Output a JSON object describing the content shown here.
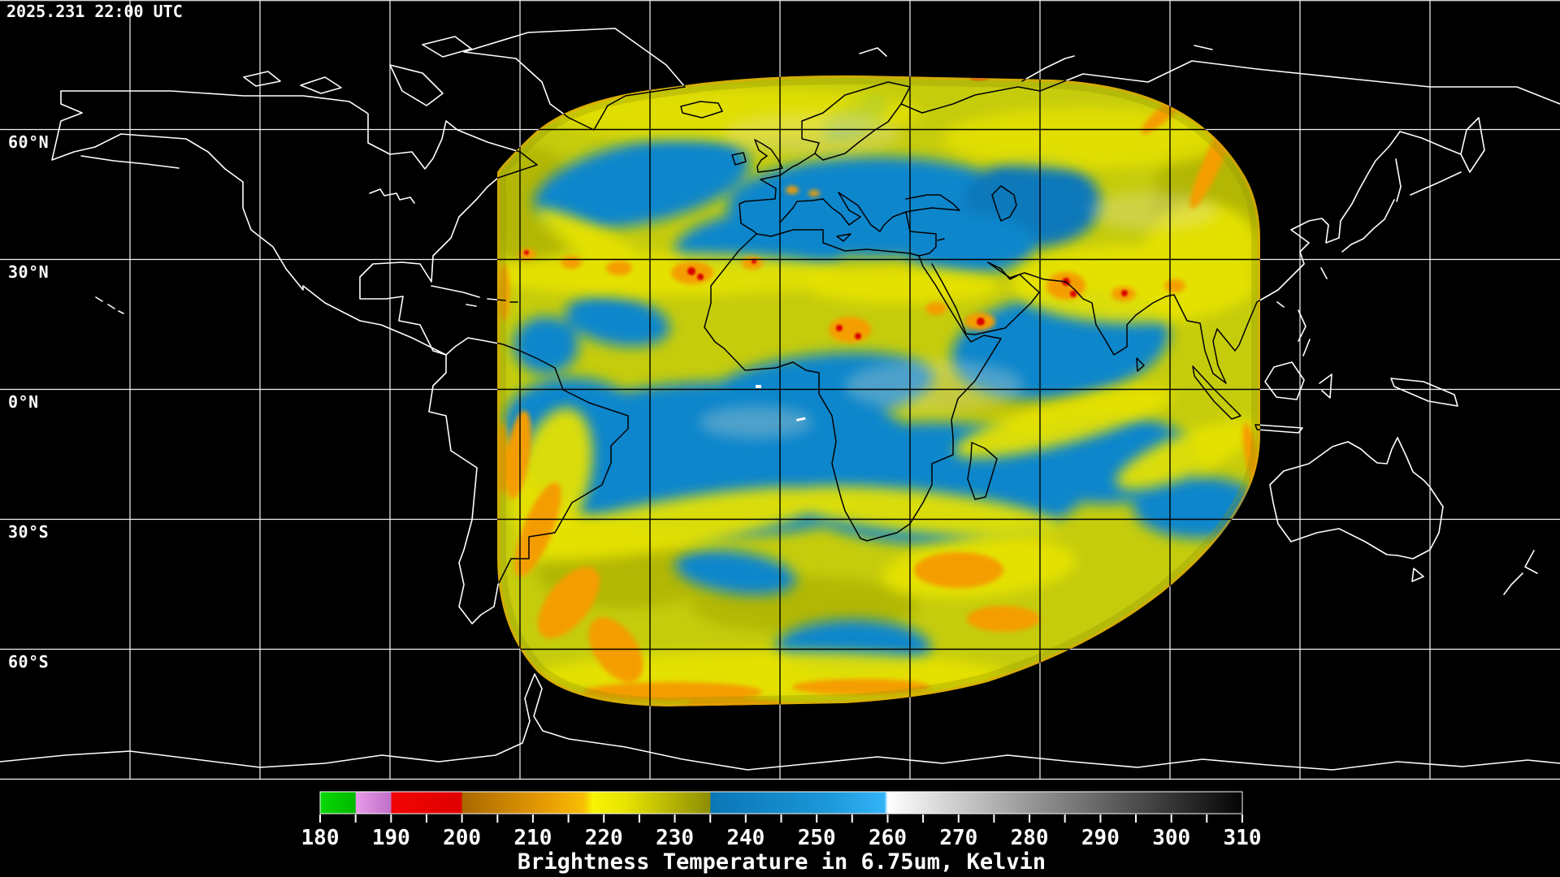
{
  "header": {
    "timestamp": "2025.231 22:00 UTC"
  },
  "map": {
    "projection": "equirectangular-global",
    "grid_interval_degrees": 30,
    "latitude_labels": [
      "60°N",
      "30°N",
      "0°N",
      "30°S",
      "60°S"
    ],
    "colors": {
      "background": "#000000",
      "coastline_outside_data": "#ffffff",
      "coastline_inside_data": "#000000",
      "graticule_outside_data": "#ffffff",
      "graticule_inside_data": "#000000"
    },
    "data_swath": {
      "description": "geostationary water vapor brightness temperature sector",
      "dominant_colors": {
        "moist_upper_troposphere_yellow": "#c5cc0c",
        "dry_air_blue": "#0e86cc",
        "cold_cloud_orange": "#f49d04",
        "coldest_convection_red": "#da0404",
        "olive_shading": "#a9ad02"
      }
    }
  },
  "colorbar": {
    "title": "Brightness Temperature in 6.75um, Kelvin",
    "min": 180,
    "max": 310,
    "tick_step": 5,
    "label_step": 10,
    "tick_labels": [
      "180",
      "190",
      "200",
      "210",
      "220",
      "230",
      "240",
      "250",
      "260",
      "270",
      "280",
      "290",
      "300",
      "310"
    ],
    "segments": [
      {
        "from": 180,
        "to": 185,
        "color": "#08d506"
      },
      {
        "from": 185,
        "to": 190,
        "color": "#dc8ede"
      },
      {
        "from": 190,
        "to": 200,
        "color": "#ee0303"
      },
      {
        "from": 200,
        "to": 218,
        "color": "#d18803"
      },
      {
        "from": 218,
        "to": 223,
        "color": "#f6f303"
      },
      {
        "from": 223,
        "to": 235,
        "color": "#a8a803"
      },
      {
        "from": 235,
        "to": 260,
        "color": "#1895d8"
      },
      {
        "from": 260,
        "to": 310,
        "color": "grayscale white to black"
      }
    ]
  }
}
